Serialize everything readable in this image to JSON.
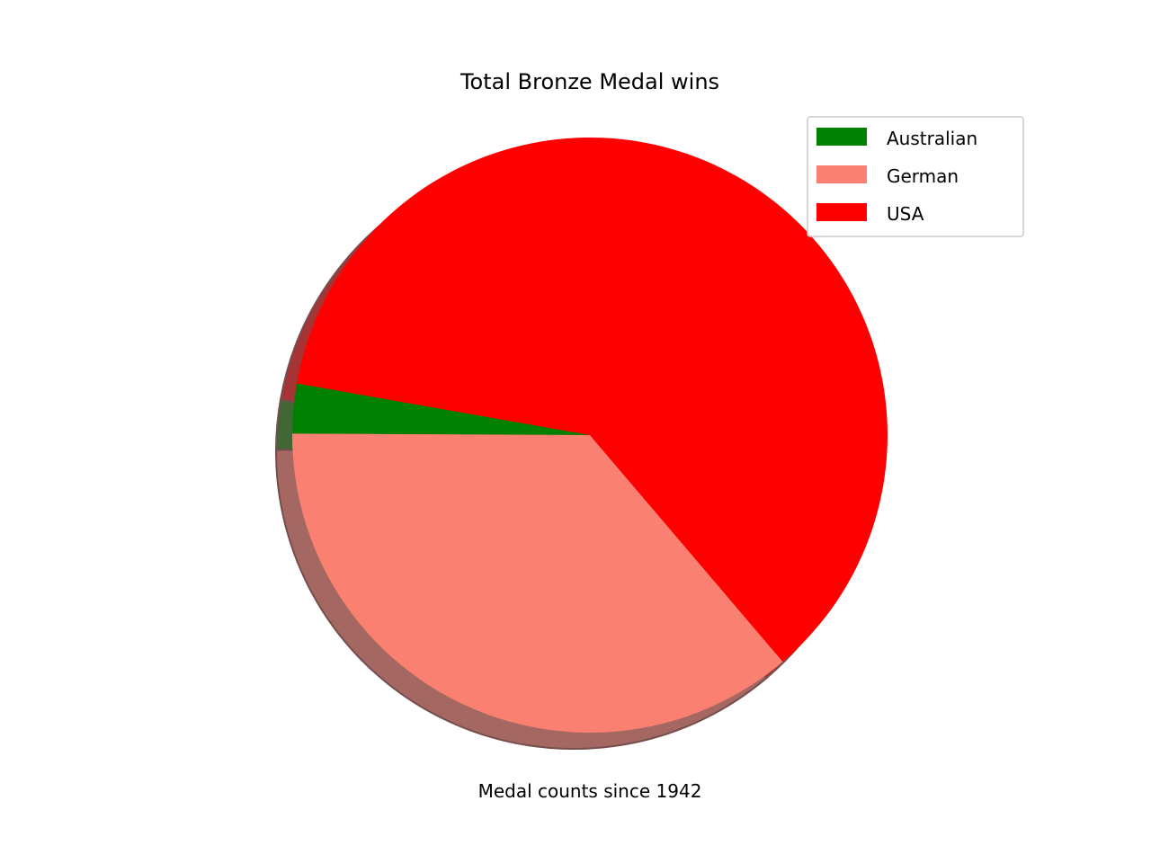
{
  "chart_data": {
    "type": "pie",
    "title": "Total Bronze Medal wins",
    "xlabel": "Medal counts since 1942",
    "ylabel": "",
    "start_angle_deg": 170,
    "direction": "counterclockwise",
    "shadow": true,
    "legend_position": "top-right",
    "categories": [
      "Australian",
      "German",
      "USA"
    ],
    "values": [
      2.7,
      36.3,
      61.0
    ],
    "colors": [
      "#008000",
      "#fa8072",
      "#ff0000"
    ]
  }
}
